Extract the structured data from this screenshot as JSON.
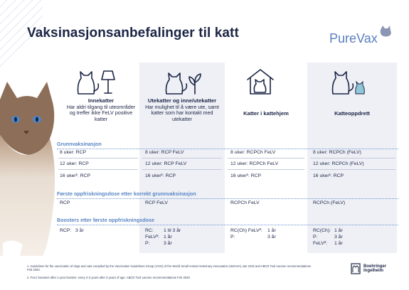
{
  "title": "Vaksinasjonsanbefalinger til katt",
  "logo": {
    "text": "PureVax"
  },
  "columns": [
    {
      "heading": "Innekatter",
      "desc": "Har aldri tilgang til uteområder og treffer ikke FeLV positive katter",
      "icon": "cat-lamp-icon"
    },
    {
      "heading": "Utekatter og inne/utekatter",
      "desc": "Har mulighet til å være ute, samt katter som har kontakt med utekatter",
      "icon": "cat-plant-icon"
    },
    {
      "heading": "Katter i kattehjem",
      "desc": "",
      "icon": "cat-house-icon"
    },
    {
      "heading": "Katteoppdrett",
      "desc": "",
      "icon": "cat-kitten-icon"
    }
  ],
  "sections": {
    "primary": "Grunnvaksinasjon",
    "first_booster": "Første oppfriskningsdose etter korrekt grunnvaksinasjon",
    "boosters": "Boosters etter første oppfriskningsdose"
  },
  "primary_rows": [
    [
      "8 uker: RCP",
      "8 uker: RCP FeLV",
      "8 uker: RCPCh FeLV",
      "8 uker: RCPCh (FeLV)"
    ],
    [
      "12 uker: RCP",
      "12 uker: RCP FeLV",
      "12 uker: RCPCh FeLV",
      "12 uker: RCPCh (FeLV)"
    ],
    [
      "16 uker¹: RCP",
      "16 uker¹: RCP",
      "16 uker¹: RCP",
      "16 uker¹: RCP"
    ]
  ],
  "first_booster_row": [
    "RCP",
    "RCP FeLV",
    "RCPCh FeLV",
    "RCPCh (FeLV)"
  ],
  "boosters": [
    [
      {
        "k": "RCP:",
        "v": "3 år"
      }
    ],
    [
      {
        "k": "RC:",
        "v": "1 til 3 år"
      },
      {
        "k": "FeLV²:",
        "v": "1 år"
      },
      {
        "k": "P:",
        "v": "3 år"
      }
    ],
    [
      {
        "k": "RC(Ch) FeLV²:",
        "v": "1 år"
      },
      {
        "k": "P:",
        "v": "3 år"
      }
    ],
    [
      {
        "k": "RC(Ch):",
        "v": "1 år"
      },
      {
        "k": "P:",
        "v": "3 år"
      },
      {
        "k": "FeLV²:",
        "v": "1 år"
      }
    ]
  ],
  "footnotes": [
    "1. Guidelines for the vaccination of dogs and cats compiled by the Vaccination Guidelines Group (VGG) of the World Small Animal Veterinary Association (WSAVA) Jan 2016 and ABCD Tool vaccine recommendations Feb 2020.",
    "2. FeLV boosters after 1-year booster: every 2-3 years after 3 years of age. ABCD Tool vaccine recommendations Feb 2020."
  ],
  "company": {
    "line1": "Boehringer",
    "line2": "Ingelheim"
  },
  "colors": {
    "navy": "#1c2545",
    "section_blue": "#5a86c5",
    "column_shade": "#eef0f6"
  }
}
